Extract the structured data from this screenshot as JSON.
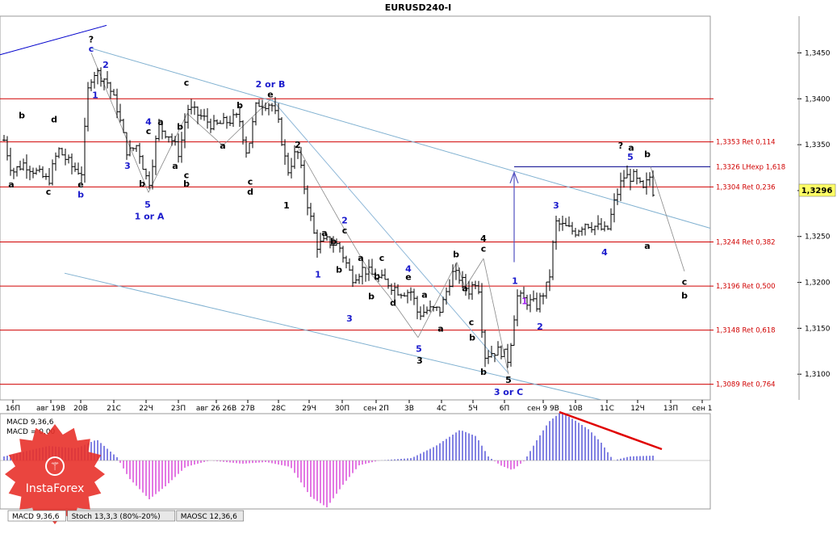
{
  "chart_data": {
    "type": "ohlc",
    "title": "EURUSD240-I",
    "current_price": {
      "value": 1.3296,
      "label": "1,3296"
    },
    "ylim": [
      1.3072,
      1.349
    ],
    "y_ticks": [
      {
        "v": 1.345,
        "label": "1,3450"
      },
      {
        "v": 1.34,
        "label": "1,3400"
      },
      {
        "v": 1.335,
        "label": "1,3350"
      },
      {
        "v": 1.33,
        "label": "1,3300"
      },
      {
        "v": 1.325,
        "label": "1,3250"
      },
      {
        "v": 1.32,
        "label": "1,3200"
      },
      {
        "v": 1.315,
        "label": "1,3150"
      },
      {
        "v": 1.31,
        "label": "1,3100"
      }
    ],
    "x_ticks": [
      "16П",
      "авг 19В",
      "20В",
      "21С",
      "22Ч",
      "23П",
      "авг 26 26В",
      "27В",
      "28С",
      "29Ч",
      "30П",
      "сен 2П",
      "3В",
      "4С",
      "5Ч",
      "6П",
      "сен 9 9В",
      "10В",
      "11С",
      "12Ч",
      "13П",
      "сен 1"
    ],
    "levels": [
      {
        "v": 1.34,
        "label": ""
      },
      {
        "v": 1.3353,
        "label": "1,3353 Ret 0,114"
      },
      {
        "v": 1.3326,
        "label": "1,3326 LHexp 1,618",
        "blue": true
      },
      {
        "v": 1.3304,
        "label": "1,3304 Ret 0,236"
      },
      {
        "v": 1.3244,
        "label": "1,3244 Ret 0,382"
      },
      {
        "v": 1.3196,
        "label": "1,3196 Ret 0,500"
      },
      {
        "v": 1.3148,
        "label": "1,3148 Ret 0,618"
      },
      {
        "v": 1.3089,
        "label": "1,3089 Ret 0,764"
      }
    ],
    "wave_labels": [
      {
        "t": "?",
        "x": 113,
        "v": 1.3465,
        "c": "black"
      },
      {
        "t": "c",
        "x": 113,
        "v": 1.3455,
        "c": "blue"
      },
      {
        "t": "2",
        "x": 131,
        "v": 1.3437,
        "c": "blue"
      },
      {
        "t": "1",
        "x": 118,
        "v": 1.3404,
        "c": "blue"
      },
      {
        "t": "b",
        "x": 27,
        "v": 1.3382,
        "c": "black"
      },
      {
        "t": "d",
        "x": 67,
        "v": 1.3378,
        "c": "black"
      },
      {
        "t": "a",
        "x": 14,
        "v": 1.3307,
        "c": "black"
      },
      {
        "t": "c",
        "x": 60,
        "v": 1.3299,
        "c": "black"
      },
      {
        "t": "e",
        "x": 100,
        "v": 1.3307,
        "c": "black"
      },
      {
        "t": "b",
        "x": 100,
        "v": 1.3296,
        "c": "blue"
      },
      {
        "t": "c",
        "x": 231,
        "v": 1.3418,
        "c": "black"
      },
      {
        "t": "4",
        "x": 184,
        "v": 1.3375,
        "c": "blue"
      },
      {
        "t": "a",
        "x": 199,
        "v": 1.3375,
        "c": "black"
      },
      {
        "t": "c",
        "x": 184,
        "v": 1.3365,
        "c": "black"
      },
      {
        "t": "b",
        "x": 223,
        "v": 1.337,
        "c": "black"
      },
      {
        "t": "3",
        "x": 158,
        "v": 1.3327,
        "c": "blue"
      },
      {
        "t": "b",
        "x": 176,
        "v": 1.3308,
        "c": "black"
      },
      {
        "t": "a",
        "x": 217,
        "v": 1.3327,
        "c": "black"
      },
      {
        "t": "c",
        "x": 231,
        "v": 1.3317,
        "c": "black"
      },
      {
        "t": "b",
        "x": 231,
        "v": 1.3308,
        "c": "black"
      },
      {
        "t": "5",
        "x": 183,
        "v": 1.3285,
        "c": "blue"
      },
      {
        "t": "1 or A",
        "x": 185,
        "v": 1.3272,
        "c": "blue"
      },
      {
        "t": "2 or B",
        "x": 335,
        "v": 1.3416,
        "c": "blue"
      },
      {
        "t": "e",
        "x": 335,
        "v": 1.3405,
        "c": "black"
      },
      {
        "t": "b",
        "x": 297,
        "v": 1.3393,
        "c": "black"
      },
      {
        "t": "a",
        "x": 276,
        "v": 1.3349,
        "c": "black"
      },
      {
        "t": "c",
        "x": 310,
        "v": 1.331,
        "c": "black"
      },
      {
        "t": "d",
        "x": 310,
        "v": 1.3299,
        "c": "black"
      },
      {
        "t": "2",
        "x": 369,
        "v": 1.335,
        "c": "black"
      },
      {
        "t": "1",
        "x": 355,
        "v": 1.3284,
        "c": "black"
      },
      {
        "t": "2",
        "x": 427,
        "v": 1.3268,
        "c": "blue"
      },
      {
        "t": "c",
        "x": 427,
        "v": 1.3257,
        "c": "black"
      },
      {
        "t": "a",
        "x": 402,
        "v": 1.3254,
        "c": "black"
      },
      {
        "t": "b",
        "x": 413,
        "v": 1.3245,
        "c": "black"
      },
      {
        "t": "a",
        "x": 447,
        "v": 1.3227,
        "c": "black"
      },
      {
        "t": "c",
        "x": 473,
        "v": 1.3227,
        "c": "black"
      },
      {
        "t": "b",
        "x": 420,
        "v": 1.3214,
        "c": "black"
      },
      {
        "t": "b",
        "x": 467,
        "v": 1.3207,
        "c": "black"
      },
      {
        "t": "1",
        "x": 394,
        "v": 1.3209,
        "c": "blue"
      },
      {
        "t": "4",
        "x": 506,
        "v": 1.3215,
        "c": "blue"
      },
      {
        "t": "e",
        "x": 506,
        "v": 1.3206,
        "c": "black"
      },
      {
        "t": "d",
        "x": 487,
        "v": 1.3178,
        "c": "black"
      },
      {
        "t": "b",
        "x": 460,
        "v": 1.3185,
        "c": "black"
      },
      {
        "t": "a",
        "x": 526,
        "v": 1.3187,
        "c": "black"
      },
      {
        "t": "3",
        "x": 433,
        "v": 1.3161,
        "c": "blue"
      },
      {
        "t": "a",
        "x": 546,
        "v": 1.315,
        "c": "black"
      },
      {
        "t": "5",
        "x": 519,
        "v": 1.3128,
        "c": "blue"
      },
      {
        "t": "3",
        "x": 520,
        "v": 1.3115,
        "c": "black"
      },
      {
        "t": "b",
        "x": 565,
        "v": 1.3231,
        "c": "black"
      },
      {
        "t": "4",
        "x": 599,
        "v": 1.3248,
        "c": "black"
      },
      {
        "t": "c",
        "x": 599,
        "v": 1.3237,
        "c": "black"
      },
      {
        "t": "a",
        "x": 576,
        "v": 1.3194,
        "c": "black"
      },
      {
        "t": "c",
        "x": 584,
        "v": 1.3157,
        "c": "black"
      },
      {
        "t": "b",
        "x": 585,
        "v": 1.314,
        "c": "black"
      },
      {
        "t": "b",
        "x": 599,
        "v": 1.3103,
        "c": "black"
      },
      {
        "t": "5",
        "x": 630,
        "v": 1.3094,
        "c": "black"
      },
      {
        "t": "3 or C",
        "x": 630,
        "v": 1.3081,
        "c": "blue"
      },
      {
        "t": "1",
        "x": 638,
        "v": 1.3202,
        "c": "blue"
      },
      {
        "t": "1",
        "x": 650,
        "v": 1.318,
        "c": "purple"
      },
      {
        "t": "2",
        "x": 669,
        "v": 1.3152,
        "c": "blue"
      },
      {
        "t": "3",
        "x": 689,
        "v": 1.3284,
        "c": "blue"
      },
      {
        "t": "4",
        "x": 749,
        "v": 1.3233,
        "c": "blue"
      },
      {
        "t": "?",
        "x": 769,
        "v": 1.3349,
        "c": "black"
      },
      {
        "t": "a",
        "x": 782,
        "v": 1.3347,
        "c": "black"
      },
      {
        "t": "5",
        "x": 781,
        "v": 1.3337,
        "c": "blue"
      },
      {
        "t": "b",
        "x": 802,
        "v": 1.334,
        "c": "black"
      },
      {
        "t": "a",
        "x": 802,
        "v": 1.324,
        "c": "black"
      },
      {
        "t": "c",
        "x": 848,
        "v": 1.3201,
        "c": "black"
      },
      {
        "t": "b",
        "x": 848,
        "v": 1.3186,
        "c": "black"
      }
    ],
    "macd": {
      "label": "MACD 9,36,6",
      "signal_label": "MACD = 0,00"
    },
    "tabs": [
      "MACD 9,36,6",
      "Stoch 13,3,3 (80%-20%)",
      "MAOSC 12,36,6"
    ],
    "watermark": "InstaForex"
  }
}
